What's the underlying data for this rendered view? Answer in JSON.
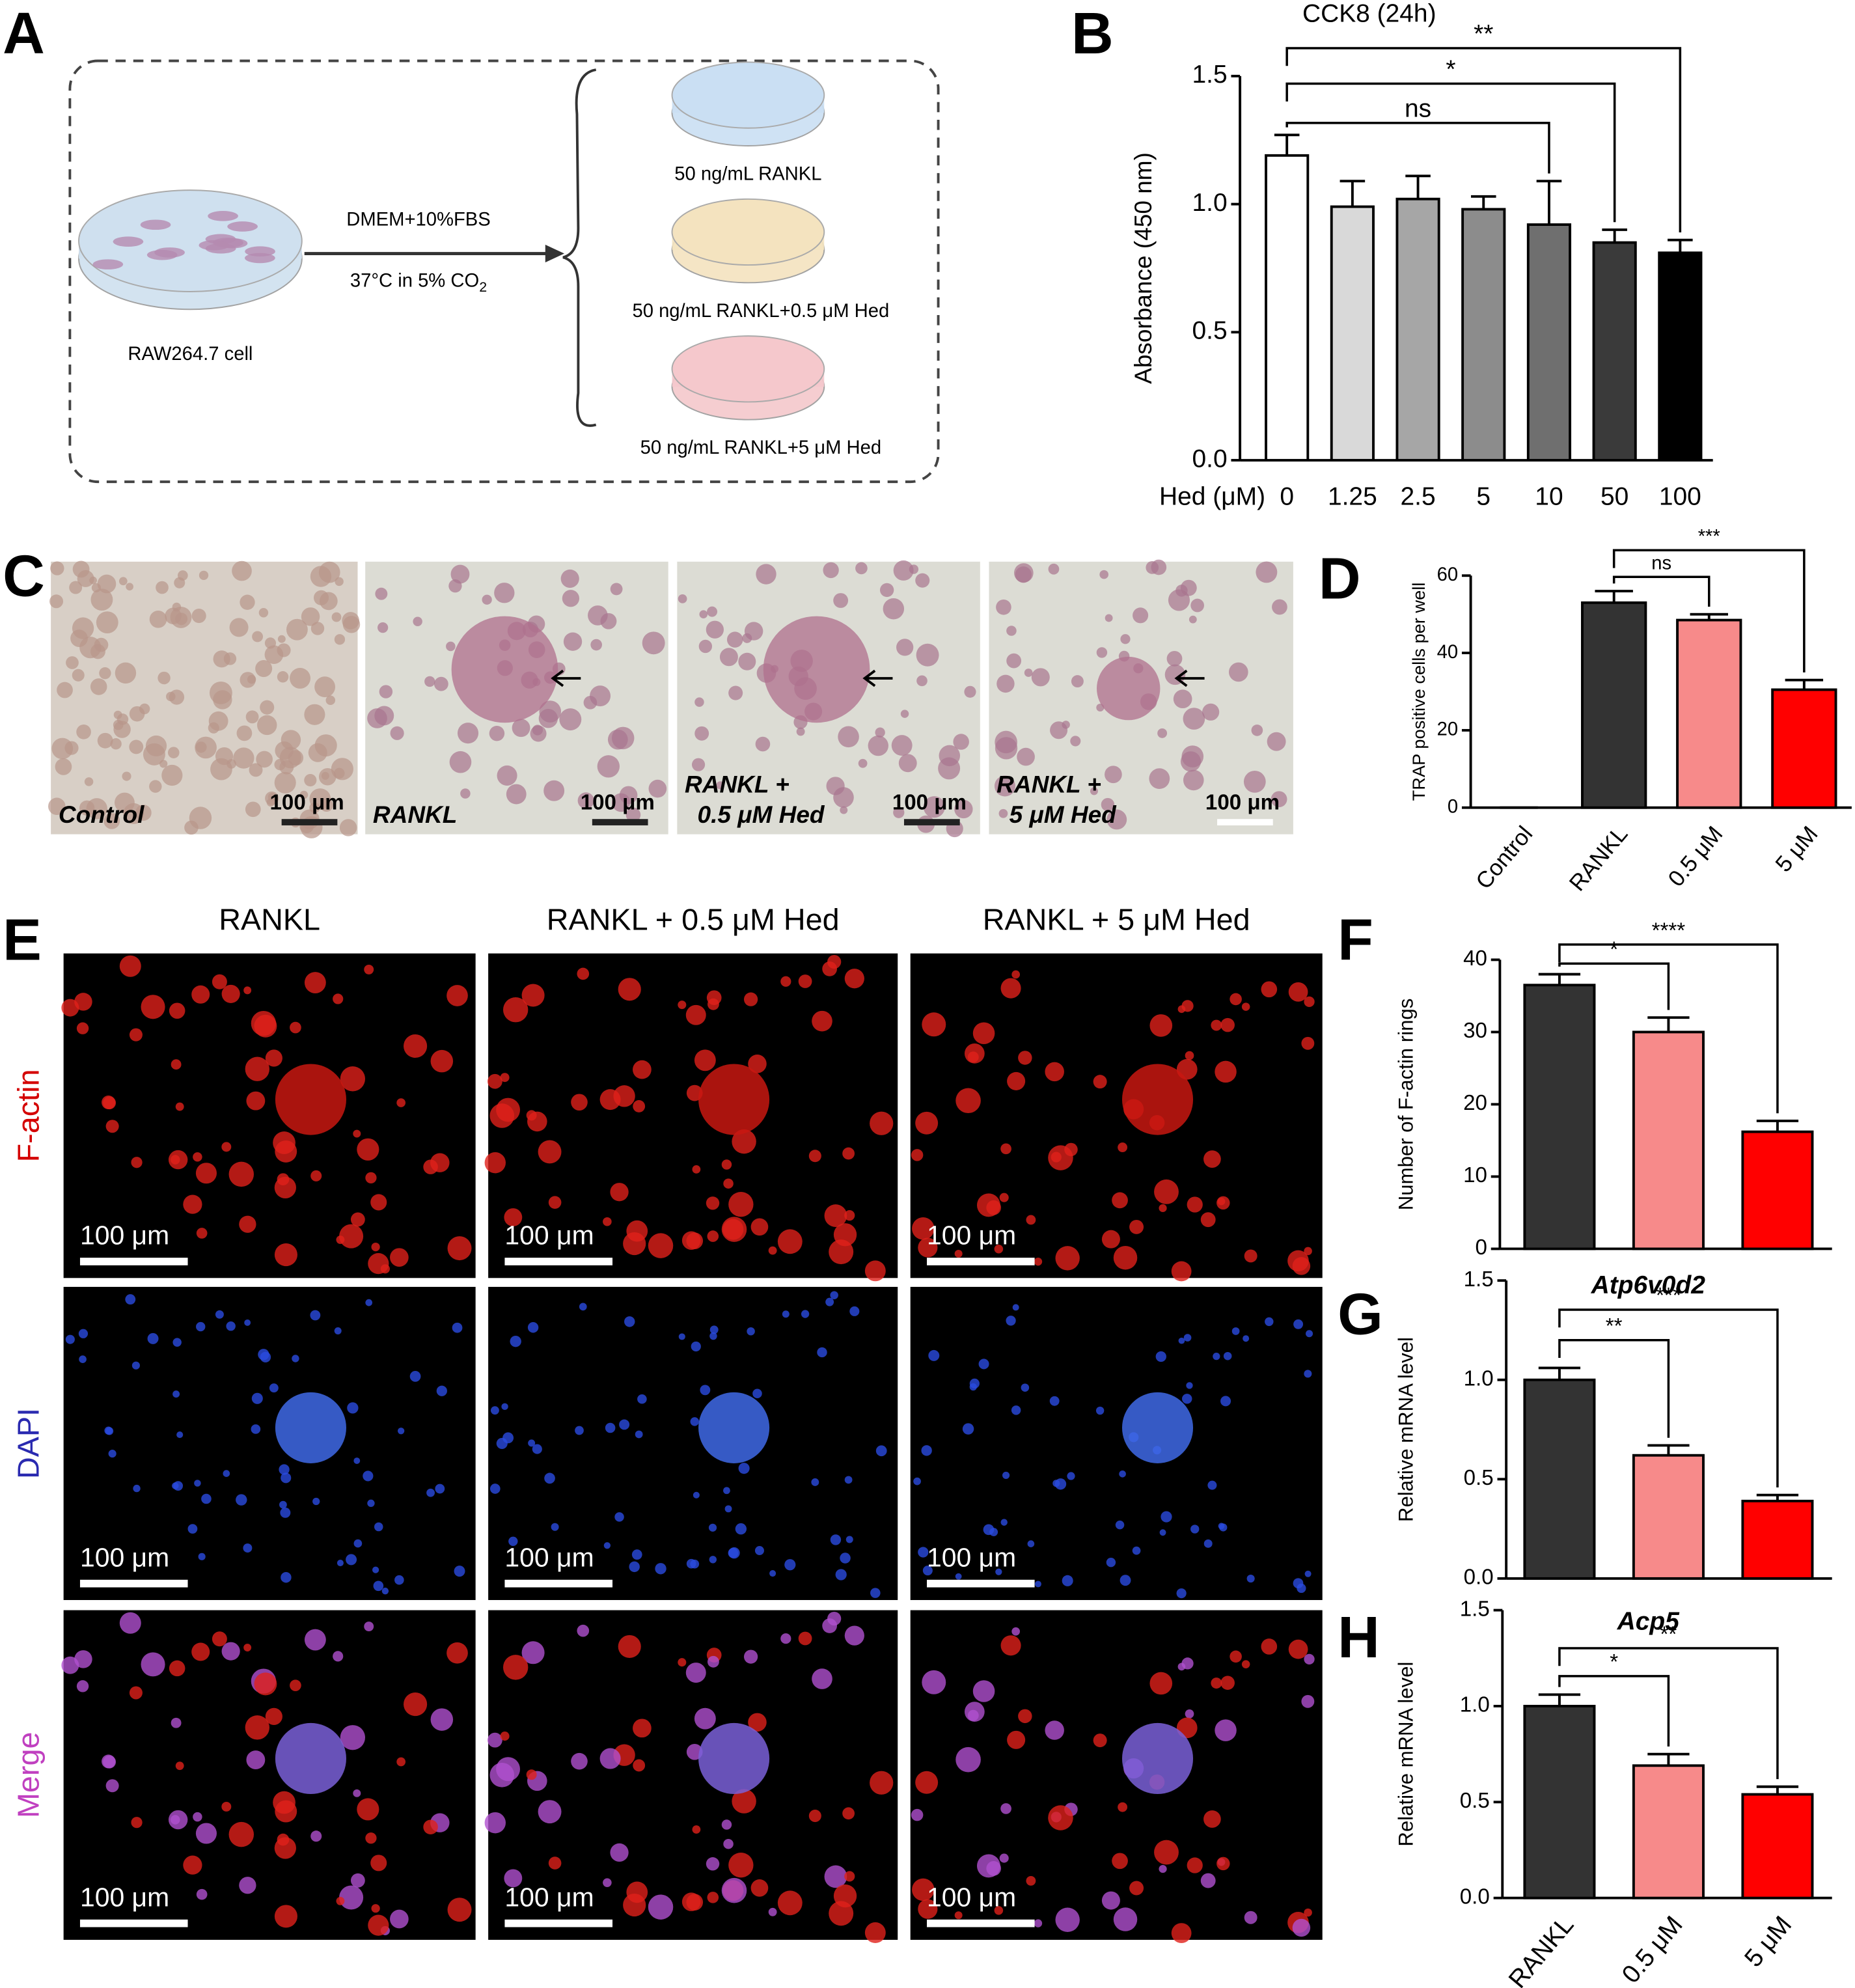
{
  "panel_labels": [
    "A",
    "B",
    "C",
    "D",
    "E",
    "F",
    "G",
    "H"
  ],
  "schematic": {
    "cell": "RAW264.7 cell",
    "medium": "DMEM+10%FBS",
    "condition": "37°C in 5% CO",
    "condition_subscript": "2",
    "groups": [
      "50 ng/mL RANKL",
      "50 ng/mL RANKL+0.5 μM Hed",
      "50 ng/mL RANKL+5 μM Hed"
    ]
  },
  "trap_images": {
    "labels": [
      [
        "Control"
      ],
      [
        "RANKL"
      ],
      [
        "RANKL +",
        "0.5 μM Hed"
      ],
      [
        "RANKL +",
        "5 μM Hed"
      ]
    ],
    "scale_bar": "100 μm"
  },
  "fluorescence": {
    "columns": [
      "RANKL",
      "RANKL + 0.5 μM Hed",
      "RANKL + 5 μM Hed"
    ],
    "rows": [
      "F-actin",
      "DAPI",
      "Merge"
    ],
    "scale_bar": "100 μm"
  },
  "chart_data": [
    {
      "type": "bar",
      "title": "CCK8 (24h)",
      "ylabel": "Absorbance (450 nm)",
      "xlabel": "Hed (μM)",
      "categories": [
        "0",
        "1.25",
        "2.5",
        "5",
        "10",
        "50",
        "100"
      ],
      "values": [
        1.19,
        0.99,
        1.02,
        0.98,
        0.92,
        0.85,
        0.81
      ],
      "errors": [
        0.08,
        0.1,
        0.09,
        0.05,
        0.17,
        0.05,
        0.05
      ],
      "colors": [
        "#ffffff",
        "#d9d9d9",
        "#a6a6a6",
        "#8c8c8c",
        "#6f6f6f",
        "#3a3a3a",
        "#000000"
      ],
      "ylim": [
        0,
        1.5
      ],
      "yticks": [
        {
          "value": 0,
          "label": "0.0"
        },
        {
          "value": 0.5,
          "label": "0.5"
        },
        {
          "value": 1,
          "label": "1.0"
        },
        {
          "value": 1.5,
          "label": "1.5"
        }
      ],
      "significance": [
        "ns",
        "*",
        "**"
      ]
    },
    {
      "type": "bar",
      "ylabel": "TRAP positive cells per well",
      "categories": [
        "Control",
        "RANKL",
        "0.5 μM",
        "5 μM"
      ],
      "values": [
        0,
        53,
        48.5,
        30.5
      ],
      "errors": [
        0,
        3,
        1.5,
        2.5
      ],
      "colors": [
        "#333333",
        "#333333",
        "#f78a8a",
        "#ff0000"
      ],
      "ylim": [
        0,
        60
      ],
      "yticks": [
        0,
        20,
        40,
        60
      ],
      "significance": [
        "ns",
        "***"
      ]
    },
    {
      "type": "bar",
      "ylabel": "Number of F-actin rings",
      "categories": [
        null,
        null,
        null
      ],
      "values": [
        36.5,
        30,
        16.2
      ],
      "errors": [
        1.5,
        2,
        1.5
      ],
      "colors": [
        "#333333",
        "#f78a8a",
        "#ff0000"
      ],
      "ylim": [
        0,
        40
      ],
      "yticks": [
        0,
        10,
        20,
        30,
        40
      ],
      "significance": [
        "*",
        "****"
      ]
    },
    {
      "type": "bar",
      "title": "Atp6v0d2",
      "ylabel": "Relative mRNA level",
      "categories": [
        null,
        null,
        null
      ],
      "values": [
        1.0,
        0.62,
        0.39
      ],
      "errors": [
        0.06,
        0.05,
        0.03
      ],
      "colors": [
        "#333333",
        "#f78a8a",
        "#ff0000"
      ],
      "ylim": [
        0,
        1.5
      ],
      "yticks": [
        {
          "value": 0,
          "label": "0.0"
        },
        {
          "value": 0.5,
          "label": "0.5"
        },
        {
          "value": 1,
          "label": "1.0"
        },
        {
          "value": 1.5,
          "label": "1.5"
        }
      ],
      "significance": [
        "**",
        "***"
      ]
    },
    {
      "type": "bar",
      "title": "Acp5",
      "ylabel": "Relative mRNA level",
      "categories": [
        "RANKL",
        "0.5 μM",
        "5 μM"
      ],
      "values": [
        1.0,
        0.69,
        0.54
      ],
      "errors": [
        0.06,
        0.06,
        0.04
      ],
      "colors": [
        "#333333",
        "#f78a8a",
        "#ff0000"
      ],
      "ylim": [
        0,
        1.5
      ],
      "yticks": [
        {
          "value": 0,
          "label": "0.0"
        },
        {
          "value": 0.5,
          "label": "0.5"
        },
        {
          "value": 1,
          "label": "1.0"
        },
        {
          "value": 1.5,
          "label": "1.5"
        }
      ],
      "significance": [
        "*",
        "**"
      ]
    }
  ]
}
